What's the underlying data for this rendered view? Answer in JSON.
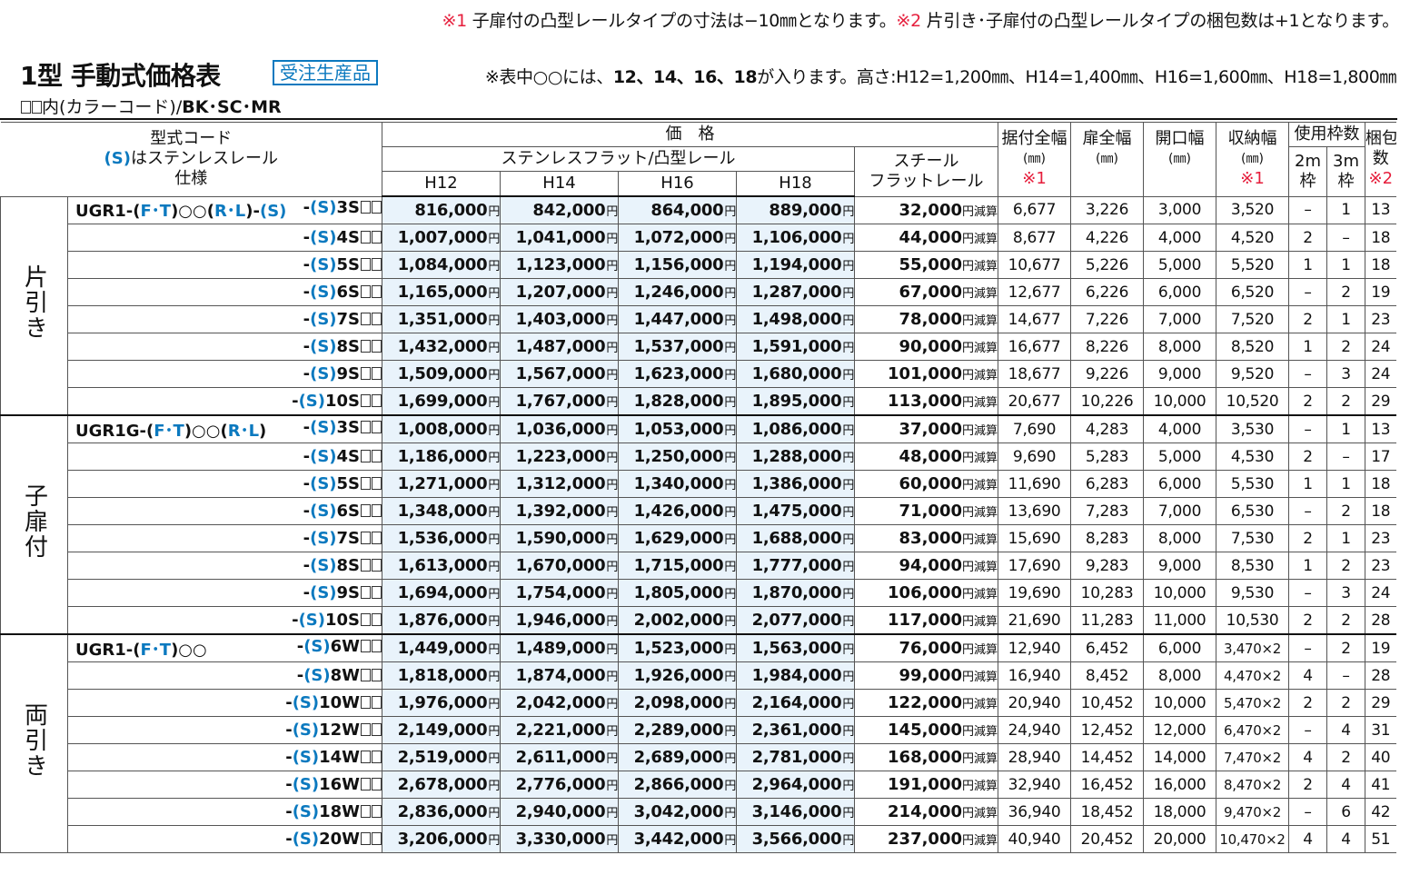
{
  "top_note": {
    "mark1": "※1",
    "text1": " 子扉付の凸型レールタイプの寸法は−10㎜となります。",
    "mark2": "※2",
    "text2": " 片引き･子扉付の凸型レールタイプの梱包数は+1となります。"
  },
  "title": "1型 手動式価格表",
  "badge": "受注生産品",
  "height_note": {
    "prefix": "※表中○○には、",
    "bold": "12、14、16、18",
    "suffix": "が入ります。高さ:H12=1,200㎜、H14=1,400㎜、H16=1,600㎜、H18=1,800㎜"
  },
  "color_code": {
    "prefix": "内(カラーコード)/",
    "codes": "BK･SC･MR"
  },
  "header": {
    "model_code_1": "型式コード",
    "model_code_s": "(S)",
    "model_code_2": "はステンレスレール",
    "model_code_3": "仕様",
    "price": "価　格",
    "stainless": "ステンレスフラット/凸型レール",
    "h12": "H12",
    "h14": "H14",
    "h16": "H16",
    "h18": "H18",
    "steel_1": "スチール",
    "steel_2": "フラットレール",
    "install_width": "据付全幅",
    "door_width": "扉全幅",
    "opening_width": "開口幅",
    "storage_width": "収納幅",
    "unit": "(㎜)",
    "mark1": "※1",
    "mark2": "※2",
    "frames": "使用枠数",
    "frame_2m": "2m",
    "frame_3m": "3m",
    "frame_unit": "枠",
    "package_1": "梱包",
    "package_2": "数"
  },
  "groups": [
    {
      "label": "片引き",
      "rows": [
        {
          "lead": "UGR1-(F･T)○○(R･L)-(S)",
          "code": "-(S)3S",
          "h12": "816,000",
          "h14": "842,000",
          "h16": "864,000",
          "h18": "889,000",
          "steel": "32,000",
          "install": "6,677",
          "door": "3,226",
          "opening": "3,000",
          "storage": "3,520",
          "f2": "–",
          "f3": "1",
          "pkg": "13"
        },
        {
          "lead": "",
          "code": "-(S)4S",
          "h12": "1,007,000",
          "h14": "1,041,000",
          "h16": "1,072,000",
          "h18": "1,106,000",
          "steel": "44,000",
          "install": "8,677",
          "door": "4,226",
          "opening": "4,000",
          "storage": "4,520",
          "f2": "2",
          "f3": "–",
          "pkg": "18"
        },
        {
          "lead": "",
          "code": "-(S)5S",
          "h12": "1,084,000",
          "h14": "1,123,000",
          "h16": "1,156,000",
          "h18": "1,194,000",
          "steel": "55,000",
          "install": "10,677",
          "door": "5,226",
          "opening": "5,000",
          "storage": "5,520",
          "f2": "1",
          "f3": "1",
          "pkg": "18"
        },
        {
          "lead": "",
          "code": "-(S)6S",
          "h12": "1,165,000",
          "h14": "1,207,000",
          "h16": "1,246,000",
          "h18": "1,287,000",
          "steel": "67,000",
          "install": "12,677",
          "door": "6,226",
          "opening": "6,000",
          "storage": "6,520",
          "f2": "–",
          "f3": "2",
          "pkg": "19"
        },
        {
          "lead": "",
          "code": "-(S)7S",
          "h12": "1,351,000",
          "h14": "1,403,000",
          "h16": "1,447,000",
          "h18": "1,498,000",
          "steel": "78,000",
          "install": "14,677",
          "door": "7,226",
          "opening": "7,000",
          "storage": "7,520",
          "f2": "2",
          "f3": "1",
          "pkg": "23"
        },
        {
          "lead": "",
          "code": "-(S)8S",
          "h12": "1,432,000",
          "h14": "1,487,000",
          "h16": "1,537,000",
          "h18": "1,591,000",
          "steel": "90,000",
          "install": "16,677",
          "door": "8,226",
          "opening": "8,000",
          "storage": "8,520",
          "f2": "1",
          "f3": "2",
          "pkg": "24"
        },
        {
          "lead": "",
          "code": "-(S)9S",
          "h12": "1,509,000",
          "h14": "1,567,000",
          "h16": "1,623,000",
          "h18": "1,680,000",
          "steel": "101,000",
          "install": "18,677",
          "door": "9,226",
          "opening": "9,000",
          "storage": "9,520",
          "f2": "–",
          "f3": "3",
          "pkg": "24"
        },
        {
          "lead": "",
          "code": "-(S)10S",
          "h12": "1,699,000",
          "h14": "1,767,000",
          "h16": "1,828,000",
          "h18": "1,895,000",
          "steel": "113,000",
          "install": "20,677",
          "door": "10,226",
          "opening": "10,000",
          "storage": "10,520",
          "f2": "2",
          "f3": "2",
          "pkg": "29"
        }
      ]
    },
    {
      "label": "子扉付",
      "rows": [
        {
          "lead": "UGR1G-(F･T)○○(R･L)",
          "code": "-(S)3S",
          "h12": "1,008,000",
          "h14": "1,036,000",
          "h16": "1,053,000",
          "h18": "1,086,000",
          "steel": "37,000",
          "install": "7,690",
          "door": "4,283",
          "opening": "4,000",
          "storage": "3,530",
          "f2": "–",
          "f3": "1",
          "pkg": "13"
        },
        {
          "lead": "",
          "code": "-(S)4S",
          "h12": "1,186,000",
          "h14": "1,223,000",
          "h16": "1,250,000",
          "h18": "1,288,000",
          "steel": "48,000",
          "install": "9,690",
          "door": "5,283",
          "opening": "5,000",
          "storage": "4,530",
          "f2": "2",
          "f3": "–",
          "pkg": "17"
        },
        {
          "lead": "",
          "code": "-(S)5S",
          "h12": "1,271,000",
          "h14": "1,312,000",
          "h16": "1,340,000",
          "h18": "1,386,000",
          "steel": "60,000",
          "install": "11,690",
          "door": "6,283",
          "opening": "6,000",
          "storage": "5,530",
          "f2": "1",
          "f3": "1",
          "pkg": "18"
        },
        {
          "lead": "",
          "code": "-(S)6S",
          "h12": "1,348,000",
          "h14": "1,392,000",
          "h16": "1,426,000",
          "h18": "1,475,000",
          "steel": "71,000",
          "install": "13,690",
          "door": "7,283",
          "opening": "7,000",
          "storage": "6,530",
          "f2": "–",
          "f3": "2",
          "pkg": "18"
        },
        {
          "lead": "",
          "code": "-(S)7S",
          "h12": "1,536,000",
          "h14": "1,590,000",
          "h16": "1,629,000",
          "h18": "1,688,000",
          "steel": "83,000",
          "install": "15,690",
          "door": "8,283",
          "opening": "8,000",
          "storage": "7,530",
          "f2": "2",
          "f3": "1",
          "pkg": "23"
        },
        {
          "lead": "",
          "code": "-(S)8S",
          "h12": "1,613,000",
          "h14": "1,670,000",
          "h16": "1,715,000",
          "h18": "1,777,000",
          "steel": "94,000",
          "install": "17,690",
          "door": "9,283",
          "opening": "9,000",
          "storage": "8,530",
          "f2": "1",
          "f3": "2",
          "pkg": "23"
        },
        {
          "lead": "",
          "code": "-(S)9S",
          "h12": "1,694,000",
          "h14": "1,754,000",
          "h16": "1,805,000",
          "h18": "1,870,000",
          "steel": "106,000",
          "install": "19,690",
          "door": "10,283",
          "opening": "10,000",
          "storage": "9,530",
          "f2": "–",
          "f3": "3",
          "pkg": "24"
        },
        {
          "lead": "",
          "code": "-(S)10S",
          "h12": "1,876,000",
          "h14": "1,946,000",
          "h16": "2,002,000",
          "h18": "2,077,000",
          "steel": "117,000",
          "install": "21,690",
          "door": "11,283",
          "opening": "11,000",
          "storage": "10,530",
          "f2": "2",
          "f3": "2",
          "pkg": "28"
        }
      ]
    },
    {
      "label": "両引き",
      "rows": [
        {
          "lead": "UGR1-(F･T)○○",
          "code": "-(S)6W",
          "h12": "1,449,000",
          "h14": "1,489,000",
          "h16": "1,523,000",
          "h18": "1,563,000",
          "steel": "76,000",
          "install": "12,940",
          "door": "6,452",
          "opening": "6,000",
          "storage": "3,470×2",
          "f2": "–",
          "f3": "2",
          "pkg": "19"
        },
        {
          "lead": "",
          "code": "-(S)8W",
          "h12": "1,818,000",
          "h14": "1,874,000",
          "h16": "1,926,000",
          "h18": "1,984,000",
          "steel": "99,000",
          "install": "16,940",
          "door": "8,452",
          "opening": "8,000",
          "storage": "4,470×2",
          "f2": "4",
          "f3": "–",
          "pkg": "28"
        },
        {
          "lead": "",
          "code": "-(S)10W",
          "h12": "1,976,000",
          "h14": "2,042,000",
          "h16": "2,098,000",
          "h18": "2,164,000",
          "steel": "122,000",
          "install": "20,940",
          "door": "10,452",
          "opening": "10,000",
          "storage": "5,470×2",
          "f2": "2",
          "f3": "2",
          "pkg": "29"
        },
        {
          "lead": "",
          "code": "-(S)12W",
          "h12": "2,149,000",
          "h14": "2,221,000",
          "h16": "2,289,000",
          "h18": "2,361,000",
          "steel": "145,000",
          "install": "24,940",
          "door": "12,452",
          "opening": "12,000",
          "storage": "6,470×2",
          "f2": "–",
          "f3": "4",
          "pkg": "31"
        },
        {
          "lead": "",
          "code": "-(S)14W",
          "h12": "2,519,000",
          "h14": "2,611,000",
          "h16": "2,689,000",
          "h18": "2,781,000",
          "steel": "168,000",
          "install": "28,940",
          "door": "14,452",
          "opening": "14,000",
          "storage": "7,470×2",
          "f2": "4",
          "f3": "2",
          "pkg": "40"
        },
        {
          "lead": "",
          "code": "-(S)16W",
          "h12": "2,678,000",
          "h14": "2,776,000",
          "h16": "2,866,000",
          "h18": "2,964,000",
          "steel": "191,000",
          "install": "32,940",
          "door": "16,452",
          "opening": "16,000",
          "storage": "8,470×2",
          "f2": "2",
          "f3": "4",
          "pkg": "41"
        },
        {
          "lead": "",
          "code": "-(S)18W",
          "h12": "2,836,000",
          "h14": "2,940,000",
          "h16": "3,042,000",
          "h18": "3,146,000",
          "steel": "214,000",
          "install": "36,940",
          "door": "18,452",
          "opening": "18,000",
          "storage": "9,470×2",
          "f2": "–",
          "f3": "6",
          "pkg": "42"
        },
        {
          "lead": "",
          "code": "-(S)20W",
          "h12": "3,206,000",
          "h14": "3,330,000",
          "h16": "3,442,000",
          "h18": "3,566,000",
          "steel": "237,000",
          "install": "40,940",
          "door": "20,452",
          "opening": "20,000",
          "storage": "10,470×2",
          "f2": "4",
          "f3": "4",
          "pkg": "51"
        }
      ]
    }
  ],
  "yen": "円",
  "reduction": "円減算",
  "colors": {
    "accent_red": "#e61e3c",
    "accent_blue": "#0b79bf",
    "price_bg": "#e9f3fb"
  }
}
